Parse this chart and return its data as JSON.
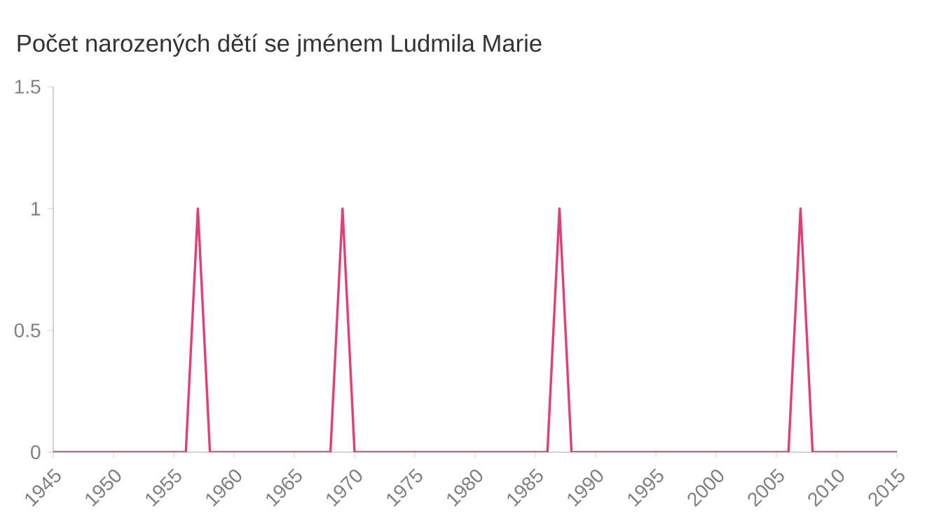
{
  "chart_data": {
    "type": "line",
    "title": "Počet narozených dětí se jménem Ludmila Marie",
    "x": [
      1945,
      1956,
      1957,
      1958,
      1968,
      1969,
      1970,
      1986,
      1987,
      1988,
      2006,
      2007,
      2008,
      2015
    ],
    "values": [
      0,
      0,
      1,
      0,
      0,
      1,
      0,
      0,
      1,
      0,
      0,
      1,
      0,
      0
    ],
    "color": "#e0407a",
    "xlim": [
      1945,
      2015
    ],
    "xticks": [
      1945,
      1950,
      1955,
      1960,
      1965,
      1970,
      1975,
      1980,
      1985,
      1990,
      1995,
      2000,
      2005,
      2010,
      2015
    ],
    "ylim": [
      0,
      1.5
    ],
    "yticks": [
      0,
      0.5,
      1,
      1.5
    ],
    "grid": false,
    "marker": "none",
    "line_style": "solid"
  }
}
